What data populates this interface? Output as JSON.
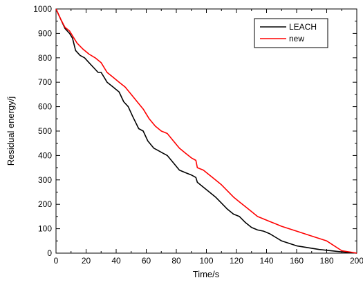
{
  "chart_data": {
    "type": "line",
    "xlabel": "Time/s",
    "ylabel": "Residual energy/j",
    "xlim": [
      0,
      200
    ],
    "ylim": [
      0,
      1000
    ],
    "x_ticks": [
      0,
      20,
      40,
      60,
      80,
      100,
      120,
      140,
      160,
      180,
      200
    ],
    "y_ticks": [
      0,
      100,
      200,
      300,
      400,
      500,
      600,
      700,
      800,
      900,
      1000
    ],
    "x_tick_labels": [
      "0",
      "20",
      "40",
      "60",
      "80",
      "100",
      "120",
      "140",
      "160",
      "180",
      "200"
    ],
    "y_tick_labels": [
      "0",
      "100",
      "200",
      "300",
      "400",
      "500",
      "600",
      "700",
      "800",
      "900",
      "1000"
    ],
    "grid": false,
    "legend_position": "top-right",
    "series": [
      {
        "name": "LEACH",
        "color": "#000000",
        "x": [
          0,
          3,
          6,
          9,
          11,
          13,
          16,
          19,
          22,
          25,
          28,
          30,
          34,
          38,
          42,
          45,
          48,
          51,
          55,
          58,
          61,
          65,
          68,
          71,
          74,
          78,
          82,
          86,
          90,
          93,
          94,
          98,
          102,
          106,
          110,
          114,
          118,
          122,
          126,
          130,
          134,
          138,
          142,
          146,
          150,
          160,
          175,
          190,
          200
        ],
        "y": [
          1000,
          960,
          920,
          900,
          880,
          830,
          810,
          800,
          780,
          760,
          740,
          740,
          700,
          680,
          660,
          620,
          600,
          560,
          510,
          500,
          460,
          430,
          420,
          410,
          400,
          370,
          340,
          330,
          320,
          310,
          290,
          270,
          250,
          230,
          205,
          180,
          160,
          150,
          125,
          105,
          95,
          90,
          80,
          65,
          50,
          30,
          15,
          5,
          0
        ]
      },
      {
        "name": "new",
        "color": "#ff0000",
        "x": [
          0,
          3,
          6,
          9,
          11,
          14,
          18,
          22,
          26,
          30,
          34,
          38,
          42,
          46,
          50,
          54,
          58,
          62,
          66,
          70,
          74,
          78,
          82,
          86,
          90,
          93,
          94,
          98,
          102,
          106,
          110,
          114,
          118,
          122,
          126,
          130,
          134,
          138,
          142,
          146,
          150,
          160,
          170,
          180,
          190,
          200
        ],
        "y": [
          1000,
          960,
          925,
          910,
          890,
          860,
          835,
          815,
          800,
          780,
          740,
          720,
          700,
          680,
          650,
          620,
          590,
          550,
          520,
          500,
          490,
          460,
          430,
          410,
          390,
          380,
          350,
          340,
          320,
          300,
          280,
          255,
          230,
          210,
          190,
          170,
          150,
          140,
          130,
          120,
          110,
          90,
          70,
          50,
          10,
          0
        ]
      }
    ]
  }
}
